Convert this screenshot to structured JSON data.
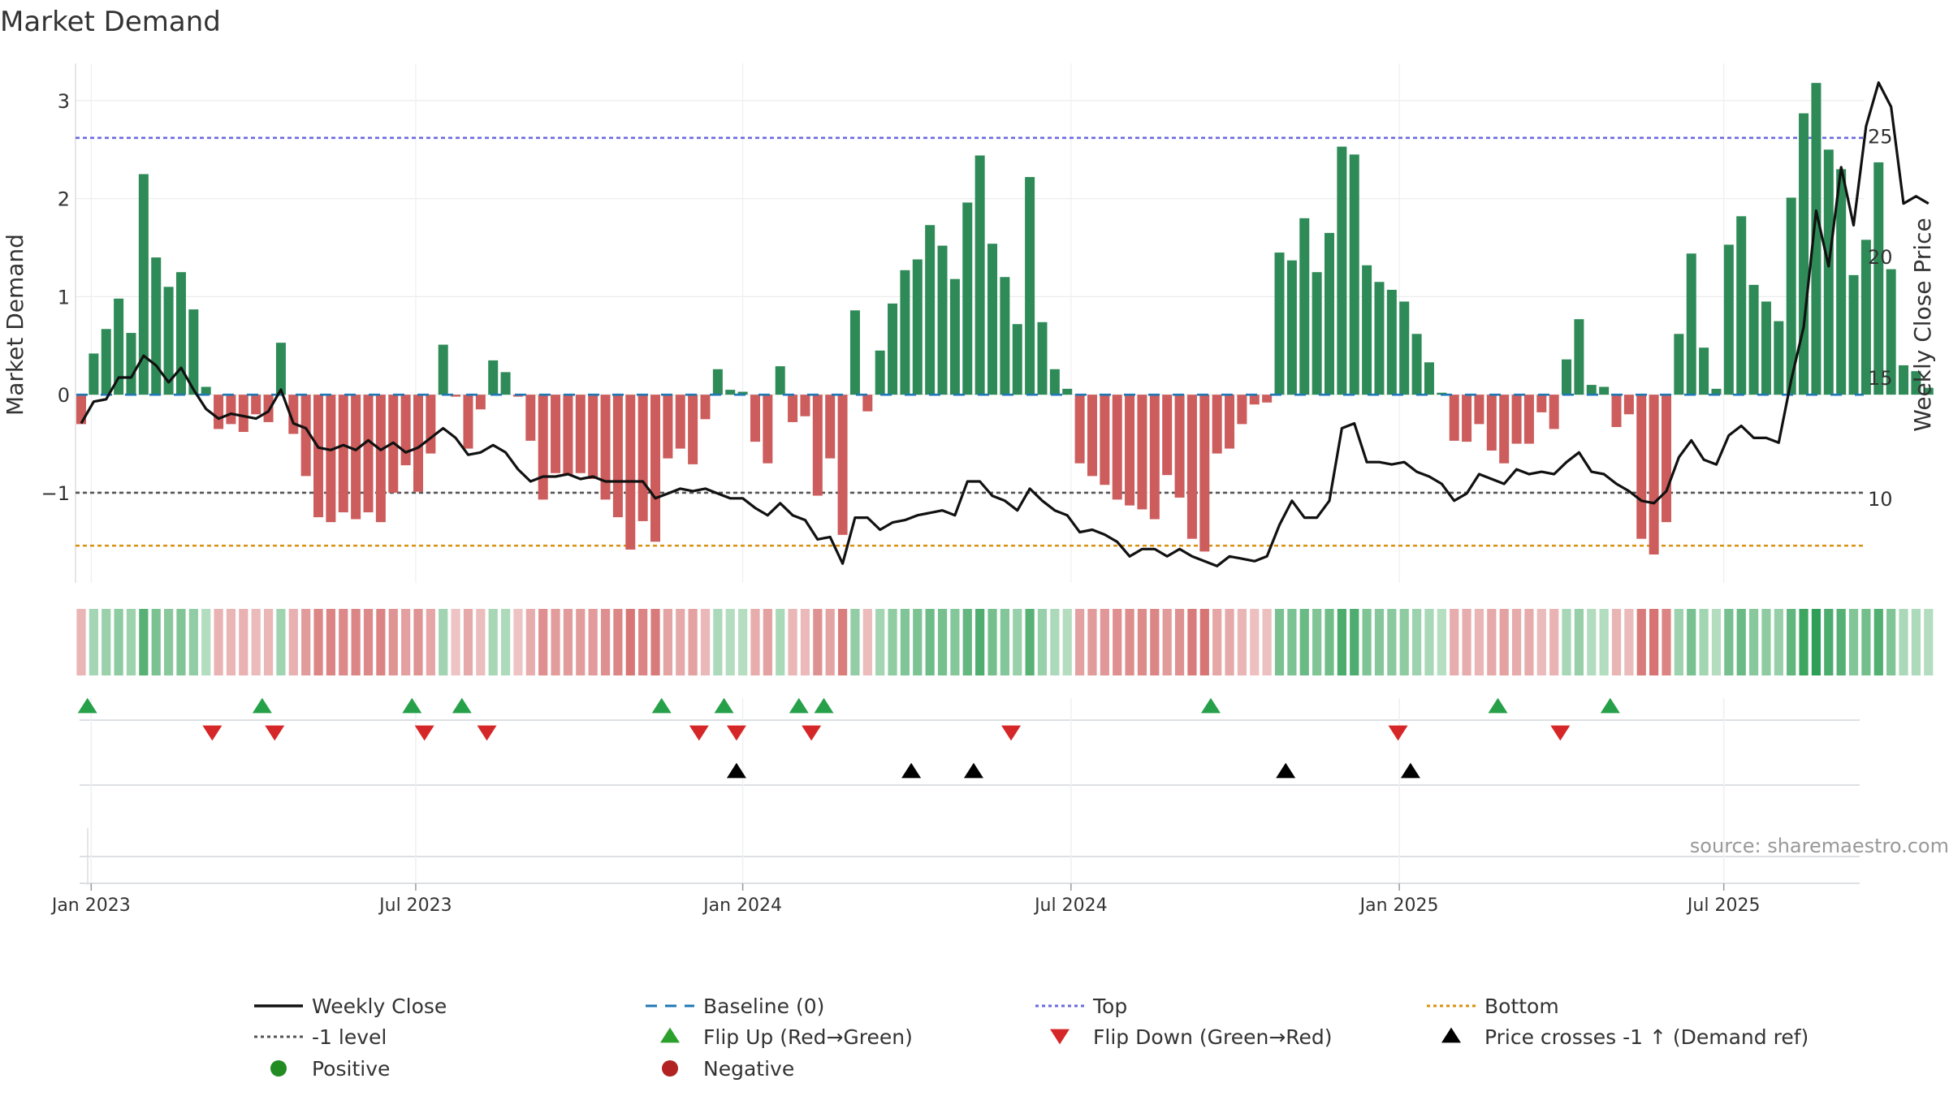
{
  "chart_data": {
    "type": "bar+line",
    "title": "Market Demand",
    "ylabel_left": "Market Demand",
    "ylabel_right": "Weekly Close Price",
    "ylim_left": [
      -1.92,
      3.38
    ],
    "ylim_right": [
      6.5,
      28.0
    ],
    "yticks_left": [
      3,
      2,
      1,
      0,
      -1
    ],
    "ytick_labels_left": [
      "3",
      "2",
      "1",
      "0",
      "−1"
    ],
    "yticks_right": [
      25,
      20,
      15,
      10
    ],
    "ytick_labels_right": [
      "25",
      "20",
      "15",
      "10"
    ],
    "xticks": [
      "Jan 2023",
      "Jul 2023",
      "Jan 2024",
      "Jul 2024",
      "Jan 2025",
      "Jul 2025"
    ],
    "xtick_week_index": [
      0.8,
      26.8,
      53,
      79.3,
      105.6,
      131.6
    ],
    "reference_lines": {
      "top": 2.62,
      "minus_one": -1.0,
      "bottom": -1.54,
      "baseline": 0
    },
    "demand": [
      -0.3,
      0.42,
      0.67,
      0.98,
      0.63,
      2.25,
      1.4,
      1.1,
      1.25,
      0.87,
      0.08,
      -0.35,
      -0.3,
      -0.38,
      -0.2,
      -0.28,
      0.53,
      -0.4,
      -0.83,
      -1.25,
      -1.3,
      -1.2,
      -1.27,
      -1.2,
      -1.3,
      -1.0,
      -0.72,
      -0.99,
      -0.6,
      0.51,
      -0.02,
      -0.55,
      -0.15,
      0.35,
      0.23,
      -0.02,
      -0.47,
      -1.07,
      -0.8,
      -0.82,
      -0.8,
      -0.86,
      -1.07,
      -1.25,
      -1.58,
      -1.29,
      -1.5,
      -0.65,
      -0.55,
      -0.71,
      -0.25,
      0.26,
      0.05,
      0.03,
      -0.48,
      -0.7,
      0.29,
      -0.28,
      -0.22,
      -1.03,
      -0.65,
      -1.43,
      0.86,
      -0.17,
      0.45,
      0.93,
      1.27,
      1.38,
      1.73,
      1.52,
      1.18,
      1.96,
      2.44,
      1.54,
      1.2,
      0.72,
      2.22,
      0.74,
      0.26,
      0.06,
      -0.7,
      -0.83,
      -0.92,
      -1.07,
      -1.13,
      -1.17,
      -1.27,
      -0.82,
      -1.05,
      -1.47,
      -1.6,
      -0.6,
      -0.55,
      -0.3,
      -0.1,
      -0.08,
      1.45,
      1.37,
      1.8,
      1.25,
      1.65,
      2.53,
      2.45,
      1.32,
      1.15,
      1.07,
      0.95,
      0.62,
      0.33,
      0.02,
      -0.47,
      -0.48,
      -0.3,
      -0.57,
      -0.7,
      -0.5,
      -0.5,
      -0.18,
      -0.35,
      0.36,
      0.77,
      0.1,
      0.08,
      -0.33,
      -0.2,
      -1.47,
      -1.63,
      -1.3,
      0.62,
      1.44,
      0.48,
      0.06,
      1.53,
      1.82,
      1.12,
      0.95,
      0.75,
      2.01,
      2.87,
      3.18,
      2.5,
      2.3,
      1.22,
      1.58,
      2.37,
      1.28,
      0.3,
      0.24,
      0.07
    ],
    "weekly_close": [
      13.1,
      14.0,
      14.1,
      15.0,
      15.0,
      15.9,
      15.5,
      14.8,
      15.4,
      14.5,
      13.7,
      13.3,
      13.5,
      13.4,
      13.3,
      13.6,
      14.5,
      13.1,
      12.9,
      12.1,
      12.0,
      12.2,
      12.0,
      12.4,
      12.0,
      12.3,
      11.9,
      12.1,
      12.5,
      12.9,
      12.5,
      11.8,
      11.9,
      12.2,
      11.9,
      11.2,
      10.7,
      10.9,
      10.9,
      11.0,
      10.8,
      10.9,
      10.7,
      10.7,
      10.7,
      10.7,
      10.0,
      10.2,
      10.4,
      10.3,
      10.4,
      10.2,
      10.0,
      10.0,
      9.6,
      9.3,
      9.8,
      9.3,
      9.1,
      8.3,
      8.4,
      7.3,
      9.2,
      9.2,
      8.7,
      9.0,
      9.1,
      9.3,
      9.4,
      9.5,
      9.3,
      10.7,
      10.7,
      10.1,
      9.9,
      9.5,
      10.4,
      9.9,
      9.5,
      9.3,
      8.6,
      8.7,
      8.5,
      8.2,
      7.6,
      7.9,
      7.9,
      7.6,
      7.9,
      7.6,
      7.4,
      7.2,
      7.6,
      7.5,
      7.4,
      7.6,
      8.9,
      9.9,
      9.2,
      9.2,
      9.9,
      12.9,
      13.1,
      11.5,
      11.5,
      11.4,
      11.5,
      11.1,
      10.9,
      10.6,
      9.9,
      10.2,
      11.0,
      10.8,
      10.6,
      11.2,
      11.0,
      11.1,
      11.0,
      11.5,
      11.9,
      11.1,
      11.0,
      10.6,
      10.3,
      9.9,
      9.8,
      10.3,
      11.7,
      12.4,
      11.6,
      11.4,
      12.6,
      13.0,
      12.5,
      12.5,
      12.3,
      14.9,
      17.1,
      21.9,
      19.6,
      23.7,
      21.3,
      25.4,
      27.2,
      26.2,
      22.2,
      22.5,
      22.2
    ],
    "flip_up_weeks": [
      0.5,
      14.5,
      26.5,
      30.5,
      46.5,
      51.5,
      57.5,
      59.5,
      90.5,
      113.5,
      122.5
    ],
    "flip_down_weeks": [
      10.5,
      15.5,
      27.5,
      32.5,
      49.5,
      52.5,
      58.5,
      74.5,
      105.5,
      118.5
    ],
    "price_cross_weeks": [
      52.5,
      66.5,
      71.5,
      96.5,
      106.5
    ],
    "source": "source: sharemaestro.com",
    "legend": [
      {
        "label": "Weekly Close",
        "type": "line-solid",
        "color": "#111111"
      },
      {
        "label": "Baseline (0)",
        "type": "line-dash",
        "color": "#1f77b4"
      },
      {
        "label": "Top",
        "type": "line-dot",
        "color": "#6a6ae0"
      },
      {
        "label": "Bottom",
        "type": "line-dot",
        "color": "#d8900e"
      },
      {
        "label": "-1 level",
        "type": "line-dot",
        "color": "#555555"
      },
      {
        "label": "Flip Up (Red→Green)",
        "type": "tri-up",
        "color": "#2ca02c"
      },
      {
        "label": "Flip Down (Green→Red)",
        "type": "tri-down",
        "color": "#d62728"
      },
      {
        "label": "Price crosses -1 ↑ (Demand ref)",
        "type": "tri-up",
        "color": "#000000"
      },
      {
        "label": "Positive",
        "type": "dot",
        "color": "#228b22"
      },
      {
        "label": "Negative",
        "type": "dot",
        "color": "#b22222"
      }
    ],
    "colors": {
      "positive_bar": "#2e8b57",
      "negative_bar": "#cd5c5c",
      "price_line": "#111111",
      "heat_positive": "#2e9e55",
      "heat_negative": "#d67070"
    }
  }
}
